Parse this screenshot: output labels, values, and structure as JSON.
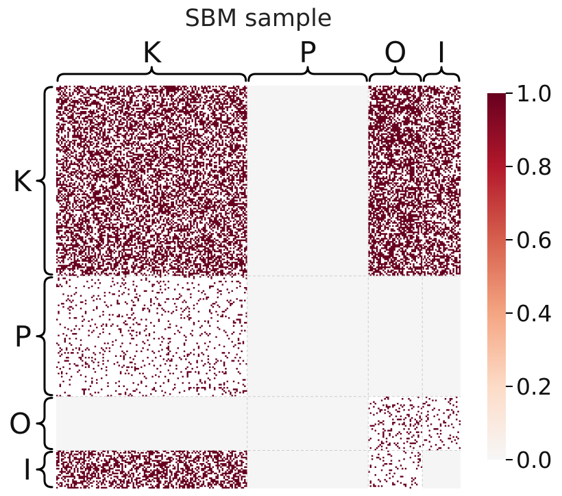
{
  "chart_data": {
    "type": "heatmap",
    "title": "SBM sample",
    "groups": [
      "K",
      "P",
      "O",
      "I"
    ],
    "group_sizes": [
      120,
      76,
      34,
      24
    ],
    "block_probabilities": [
      [
        0.5,
        0.0,
        0.6,
        0.5
      ],
      [
        0.1,
        0.0,
        0.0,
        0.0
      ],
      [
        0.0,
        0.0,
        0.15,
        0.1
      ],
      [
        0.5,
        0.0,
        0.1,
        0.0
      ]
    ],
    "empty_block_color": "#f5f5f5",
    "colorbar": {
      "colormap": "RdBu_r (upper half)",
      "range": [
        0.0,
        1.0
      ],
      "ticks": [
        "0.0",
        "0.2",
        "0.4",
        "0.6",
        "0.8",
        "1.0"
      ]
    },
    "colors": {
      "edge": "#67001f",
      "background": "#ffffff",
      "grid_line": "#cccccc"
    }
  }
}
